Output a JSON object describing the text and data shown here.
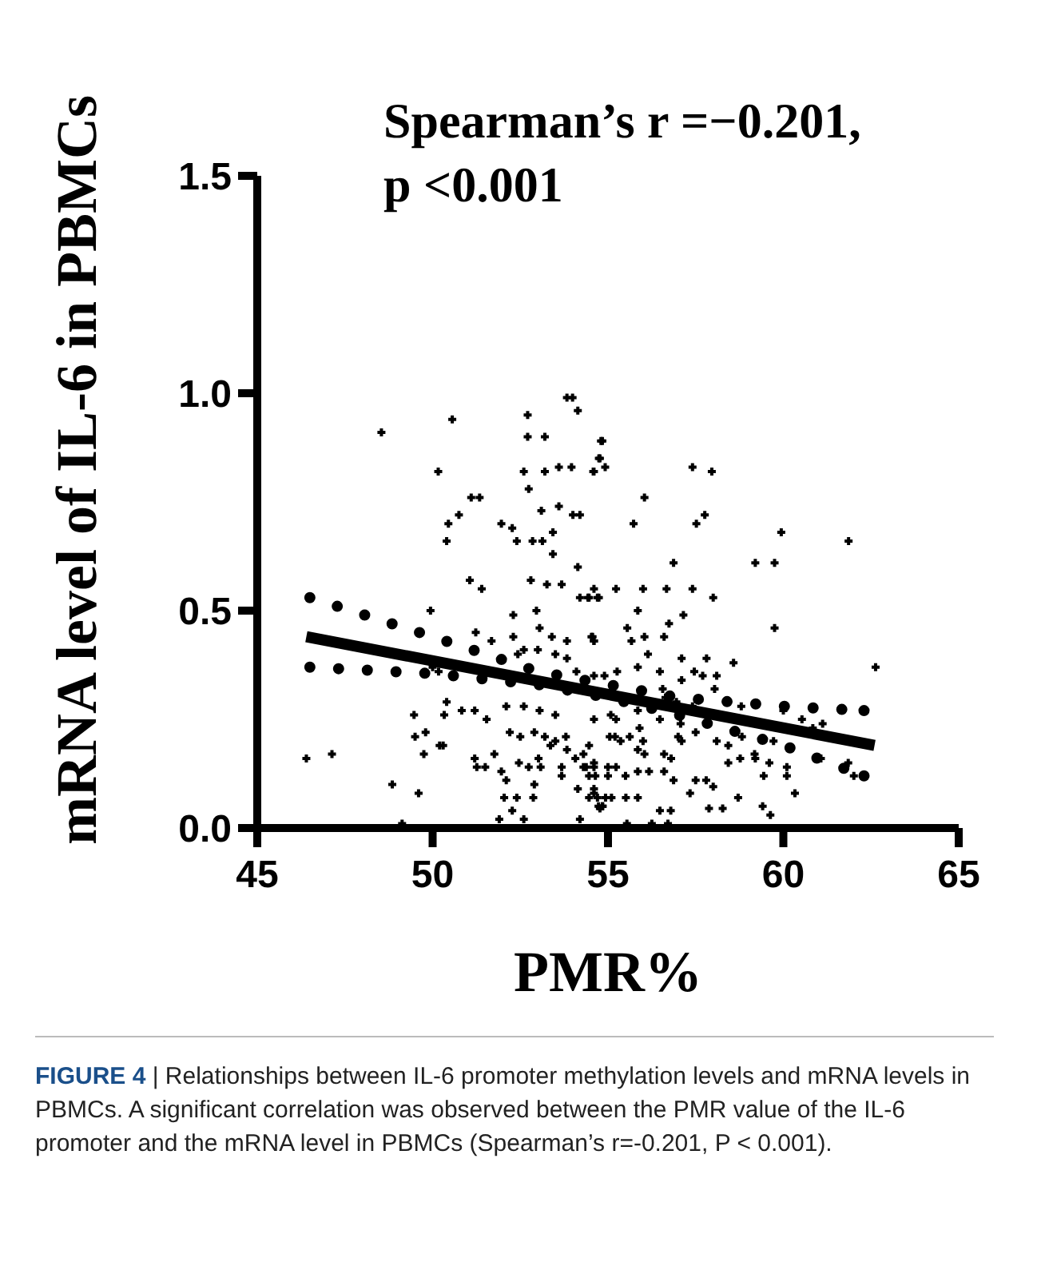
{
  "chart_data": {
    "type": "scatter",
    "xlabel": "PMR%",
    "ylabel": "mRNA level of IL-6 in PBMCs",
    "xlim": [
      45,
      65
    ],
    "xticks": [
      45,
      50,
      55,
      60,
      65
    ],
    "ylim": [
      0,
      1.5
    ],
    "yticks": [
      {
        "value": 0,
        "label": "0.0"
      },
      {
        "value": 0.5,
        "label": "0.5"
      },
      {
        "value": 1,
        "label": "1.0"
      },
      {
        "value": 1.5,
        "label": "1.5"
      }
    ],
    "grid": false,
    "legend": false,
    "annotations": [
      "Spearman’s r =−0.201,\np <0.001",
      "FIGURE 4",
      "| Relationships between IL-6 promoter methylation levels and mRNA levels in PBMCs. A significant correlation was observed between the PMR value of the IL-6 promoter and the mRNA level in PBMCs (Spearman’s r=-0.201, P < 0.001)."
    ],
    "series": [
      {
        "type": "scatter",
        "color": "#000000",
        "marker": "cross",
        "x": [
          48.54,
          50.56,
          50.16,
          52.71,
          52.71,
          53.2,
          53.83,
          53.99,
          54.14,
          52.6,
          53.2,
          53.6,
          53.96,
          52.74,
          54.6,
          54.8,
          54.77,
          51.1,
          51.34,
          50.75,
          50.45,
          50.4,
          51.96,
          52.27,
          52.4,
          53.1,
          53.6,
          54.0,
          54.2,
          52.85,
          53.13,
          53.43,
          53.43,
          54.14,
          51.06,
          51.4,
          52.8,
          53.26,
          53.68,
          54.2,
          54.46,
          54.7,
          52.3,
          52.96,
          49.94,
          51.23,
          51.68,
          52.3,
          53.05,
          53.4,
          53.83,
          54.56,
          54.6,
          50.0,
          50.17,
          52.43,
          52.6,
          53.0,
          53.5,
          53.83,
          54.1,
          49.47,
          50.33,
          50.83,
          51.2,
          50.4,
          51.54,
          52.1,
          52.6,
          53.05,
          53.5,
          49.5,
          49.8,
          50.2,
          50.3,
          49.75,
          52.2,
          52.5,
          52.9,
          53.2,
          53.5,
          53.8,
          51.76,
          51.2,
          51.26,
          51.5,
          52.46,
          52.74,
          53.02,
          53.08,
          53.68,
          54.07,
          54.38,
          54.46,
          54.64,
          46.4,
          47.13,
          48.85,
          49.6,
          49.13,
          52.1,
          52.9,
          53.68,
          54.14,
          54.6,
          52.04,
          52.4,
          52.87,
          54.46,
          54.7,
          54.84,
          55.1,
          52.27,
          52.6,
          51.9,
          54.2,
          54.73,
          51.96,
          53.36,
          53.83,
          54.3,
          54.6,
          55.08,
          54.6,
          54.9,
          54.84,
          54.74,
          54.92,
          54.58,
          56.04,
          55.73,
          57.52,
          57.76,
          57.41,
          57.96,
          56.87,
          59.2,
          59.75,
          59.94,
          61.86,
          59.75,
          62.63,
          54.6,
          55.23,
          56.0,
          56.67,
          57.41,
          58.0,
          54.43,
          54.74,
          55.85,
          57.15,
          56.74,
          54.53,
          54.6,
          55.55,
          55.67,
          56.04,
          56.6,
          56.14,
          55.26,
          55.85,
          56.48,
          57.1,
          57.81,
          58.58,
          58.1,
          57.46,
          57.7,
          57.1,
          56.56,
          56.95,
          57.41,
          58.04,
          58.8,
          56.64,
          54.6,
          55.23,
          55.85,
          55.9,
          56.48,
          57.07,
          57.5,
          57.8,
          58.1,
          55.05,
          55.2,
          55.36,
          55.62,
          56.0,
          56.04,
          55.85,
          56.6,
          56.8,
          57.1,
          57.0,
          58.43,
          58.77,
          59.2,
          59.44,
          59.6,
          60.1,
          60.1,
          60.33,
          61.07,
          61.85,
          62.01,
          60.84,
          61.12,
          60.0,
          60.53,
          59.72,
          54.46,
          54.3,
          54.6,
          55.0,
          55.23,
          55.0,
          55.5,
          55.85,
          56.17,
          56.6,
          56.87,
          57.5,
          57.8,
          58.0,
          54.6,
          54.93,
          54.85,
          54.77,
          55.51,
          55.85,
          56.48,
          56.79,
          57.34,
          57.88,
          58.27,
          58.71,
          59.41,
          59.63,
          56.71,
          56.25,
          55.54,
          58.43,
          58.82,
          59.18
        ],
        "values": [
          0.91,
          0.94,
          0.82,
          0.95,
          0.9,
          0.9,
          0.99,
          0.99,
          0.96,
          0.82,
          0.82,
          0.83,
          0.83,
          0.78,
          0.82,
          0.89,
          0.85,
          0.76,
          0.76,
          0.72,
          0.7,
          0.66,
          0.7,
          0.69,
          0.66,
          0.73,
          0.74,
          0.72,
          0.72,
          0.66,
          0.66,
          0.68,
          0.63,
          0.6,
          0.57,
          0.55,
          0.57,
          0.56,
          0.56,
          0.53,
          0.53,
          0.53,
          0.49,
          0.5,
          0.5,
          0.45,
          0.43,
          0.44,
          0.46,
          0.44,
          0.43,
          0.44,
          0.43,
          0.37,
          0.36,
          0.4,
          0.41,
          0.41,
          0.4,
          0.39,
          0.36,
          0.26,
          0.26,
          0.27,
          0.27,
          0.29,
          0.25,
          0.28,
          0.28,
          0.27,
          0.26,
          0.21,
          0.22,
          0.19,
          0.19,
          0.17,
          0.22,
          0.21,
          0.22,
          0.21,
          0.2,
          0.21,
          0.17,
          0.16,
          0.14,
          0.14,
          0.15,
          0.14,
          0.16,
          0.14,
          0.14,
          0.16,
          0.14,
          0.12,
          0.12,
          0.16,
          0.17,
          0.1,
          0.08,
          0.01,
          0.11,
          0.1,
          0.12,
          0.09,
          0.09,
          0.07,
          0.07,
          0.07,
          0.07,
          0.07,
          0.05,
          0.07,
          0.04,
          0.02,
          0.02,
          0.02,
          0.05,
          0.13,
          0.19,
          0.18,
          0.17,
          0.15,
          0.26,
          0.35,
          0.35,
          0.89,
          0.85,
          0.83,
          0.82,
          0.76,
          0.7,
          0.7,
          0.72,
          0.83,
          0.82,
          0.61,
          0.61,
          0.61,
          0.68,
          0.66,
          0.46,
          0.37,
          0.55,
          0.55,
          0.55,
          0.55,
          0.55,
          0.53,
          0.53,
          0.53,
          0.5,
          0.49,
          0.47,
          0.44,
          0.43,
          0.46,
          0.43,
          0.44,
          0.44,
          0.4,
          0.36,
          0.37,
          0.36,
          0.39,
          0.39,
          0.38,
          0.35,
          0.36,
          0.35,
          0.34,
          0.32,
          0.29,
          0.28,
          0.32,
          0.28,
          0.3,
          0.25,
          0.25,
          0.27,
          0.23,
          0.25,
          0.24,
          0.22,
          0.24,
          0.2,
          0.21,
          0.21,
          0.2,
          0.21,
          0.2,
          0.17,
          0.18,
          0.17,
          0.16,
          0.2,
          0.21,
          0.15,
          0.16,
          0.16,
          0.12,
          0.15,
          0.14,
          0.12,
          0.08,
          0.16,
          0.15,
          0.12,
          0.23,
          0.24,
          0.27,
          0.25,
          0.2,
          0.19,
          0.14,
          0.14,
          0.14,
          0.14,
          0.12,
          0.12,
          0.13,
          0.13,
          0.13,
          0.11,
          0.11,
          0.11,
          0.095,
          0.08,
          0.07,
          0.05,
          0.045,
          0.07,
          0.07,
          0.04,
          0.04,
          0.08,
          0.045,
          0.045,
          0.07,
          0.05,
          0.03,
          0.01,
          0.01,
          0.01,
          0.19,
          0.21,
          0.17
        ]
      },
      {
        "type": "line",
        "color": "#000000",
        "line_style": "solid",
        "marker": "none",
        "x": [
          46.4,
          62.6
        ],
        "values": [
          0.44,
          0.19
        ]
      },
      {
        "type": "line",
        "color": "#000000",
        "line_style": "dotted",
        "marker": "none",
        "x": [
          46.5,
          50,
          53,
          55,
          57,
          60,
          62.3
        ],
        "values": [
          0.53,
          0.44,
          0.36,
          0.33,
          0.3,
          0.28,
          0.27
        ]
      },
      {
        "type": "line",
        "color": "#000000",
        "line_style": "dotted",
        "marker": "none",
        "x": [
          46.5,
          50,
          53,
          55,
          57,
          60,
          62.3
        ],
        "values": [
          0.37,
          0.355,
          0.33,
          0.3,
          0.26,
          0.19,
          0.12
        ]
      }
    ]
  }
}
